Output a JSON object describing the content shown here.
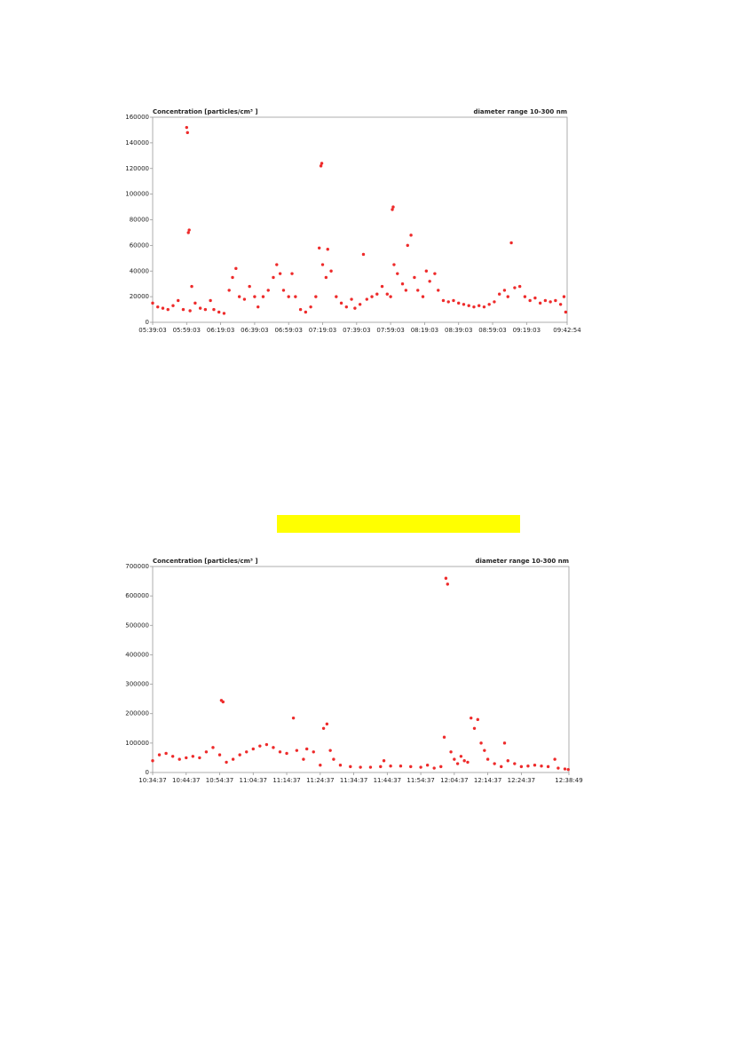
{
  "chart_data": [
    {
      "type": "scatter",
      "title": "Concentration [particles/cm³ ]",
      "subtitle": "diameter range 10-300 nm",
      "color": "#ee2b2b",
      "x": [
        "05:39:03",
        "05:42:03",
        "05:45:03",
        "05:48:03",
        "05:51:03",
        "05:54:03",
        "05:57:03",
        "05:59:03",
        "05:59:33",
        "06:00:03",
        "06:00:33",
        "06:01:03",
        "06:02:03",
        "06:04:03",
        "06:07:03",
        "06:10:03",
        "06:13:03",
        "06:15:03",
        "06:18:03",
        "06:21:03",
        "06:24:03",
        "06:26:03",
        "06:28:03",
        "06:30:03",
        "06:33:03",
        "06:36:03",
        "06:39:03",
        "06:41:03",
        "06:44:03",
        "06:47:03",
        "06:50:03",
        "06:52:03",
        "06:54:03",
        "06:56:03",
        "06:59:03",
        "07:01:03",
        "07:03:03",
        "07:06:03",
        "07:09:03",
        "07:12:03",
        "07:15:03",
        "07:17:03",
        "07:18:03",
        "07:18:33",
        "07:19:03",
        "07:21:03",
        "07:22:03",
        "07:24:03",
        "07:27:03",
        "07:30:03",
        "07:33:03",
        "07:36:03",
        "07:38:03",
        "07:41:03",
        "07:43:03",
        "07:45:03",
        "07:48:03",
        "07:51:03",
        "07:54:03",
        "07:57:03",
        "07:59:03",
        "08:00:03",
        "08:00:33",
        "08:01:03",
        "08:03:03",
        "08:06:03",
        "08:08:03",
        "08:09:03",
        "08:11:03",
        "08:13:03",
        "08:15:03",
        "08:18:03",
        "08:20:03",
        "08:22:03",
        "08:25:03",
        "08:27:03",
        "08:30:03",
        "08:33:03",
        "08:36:03",
        "08:39:03",
        "08:42:03",
        "08:45:03",
        "08:48:03",
        "08:51:03",
        "08:54:03",
        "08:57:03",
        "09:00:03",
        "09:03:03",
        "09:06:03",
        "09:08:03",
        "09:10:03",
        "09:12:03",
        "09:15:03",
        "09:18:03",
        "09:21:03",
        "09:24:03",
        "09:27:03",
        "09:30:03",
        "09:33:03",
        "09:36:03",
        "09:39:03",
        "09:41:03",
        "09:42:03"
      ],
      "values": [
        15000,
        12000,
        11000,
        10000,
        13000,
        17000,
        10000,
        152000,
        148000,
        70000,
        72000,
        9000,
        28000,
        15000,
        11000,
        10000,
        17000,
        10000,
        8000,
        7000,
        25000,
        35000,
        42000,
        20000,
        18000,
        28000,
        20000,
        12000,
        20000,
        25000,
        35000,
        45000,
        38000,
        25000,
        20000,
        38000,
        20000,
        10000,
        8000,
        12000,
        20000,
        58000,
        122000,
        124000,
        45000,
        35000,
        57000,
        40000,
        20000,
        15000,
        12000,
        18000,
        11000,
        14000,
        53000,
        18000,
        20000,
        22000,
        28000,
        22000,
        20000,
        88000,
        90000,
        45000,
        38000,
        30000,
        25000,
        60000,
        68000,
        35000,
        25000,
        20000,
        40000,
        32000,
        38000,
        25000,
        17000,
        16000,
        17000,
        15000,
        14000,
        13000,
        12000,
        13000,
        12000,
        14000,
        16000,
        22000,
        25000,
        20000,
        62000,
        27000,
        28000,
        20000,
        17000,
        19000,
        15000,
        17000,
        16000,
        17000,
        14000,
        20000,
        8000
      ],
      "xlim": [
        "05:39:03",
        "09:42:54"
      ],
      "xticks": [
        "05:39:03",
        "05:59:03",
        "06:19:03",
        "06:39:03",
        "06:59:03",
        "07:19:03",
        "07:39:03",
        "07:59:03",
        "08:19:03",
        "08:39:03",
        "08:59:03",
        "09:19:03",
        "09:42:54"
      ],
      "ylim": [
        0,
        160000
      ],
      "yticks": [
        0,
        20000,
        40000,
        60000,
        80000,
        100000,
        120000,
        140000,
        160000
      ]
    },
    {
      "type": "scatter",
      "title": "Concentration [particles/cm³ ]",
      "subtitle": "diameter range 10-300 nm",
      "color": "#ee2b2b",
      "x": [
        "10:34:37",
        "10:36:37",
        "10:38:37",
        "10:40:37",
        "10:42:37",
        "10:44:37",
        "10:46:37",
        "10:48:37",
        "10:50:37",
        "10:52:37",
        "10:54:37",
        "10:55:07",
        "10:55:37",
        "10:56:37",
        "10:58:37",
        "11:00:37",
        "11:02:37",
        "11:04:37",
        "11:06:37",
        "11:08:37",
        "11:10:37",
        "11:12:37",
        "11:14:37",
        "11:16:37",
        "11:17:37",
        "11:19:37",
        "11:20:37",
        "11:22:37",
        "11:24:37",
        "11:25:37",
        "11:26:37",
        "11:27:37",
        "11:28:37",
        "11:30:37",
        "11:33:37",
        "11:36:37",
        "11:39:37",
        "11:42:37",
        "11:43:37",
        "11:45:37",
        "11:48:37",
        "11:51:37",
        "11:54:37",
        "11:56:37",
        "11:58:37",
        "12:00:37",
        "12:01:37",
        "12:02:07",
        "12:02:37",
        "12:03:37",
        "12:04:37",
        "12:05:37",
        "12:06:37",
        "12:07:37",
        "12:08:37",
        "12:09:37",
        "12:10:37",
        "12:11:37",
        "12:12:37",
        "12:13:37",
        "12:14:37",
        "12:16:37",
        "12:18:37",
        "12:19:37",
        "12:20:37",
        "12:22:37",
        "12:24:37",
        "12:26:37",
        "12:28:37",
        "12:30:37",
        "12:32:37",
        "12:34:37",
        "12:35:37",
        "12:37:37",
        "12:38:37"
      ],
      "values": [
        40000,
        60000,
        65000,
        55000,
        45000,
        50000,
        55000,
        50000,
        70000,
        85000,
        60000,
        245000,
        240000,
        35000,
        45000,
        60000,
        70000,
        80000,
        90000,
        95000,
        85000,
        70000,
        65000,
        185000,
        75000,
        45000,
        80000,
        70000,
        25000,
        150000,
        165000,
        75000,
        45000,
        25000,
        20000,
        18000,
        18000,
        20000,
        40000,
        22000,
        22000,
        20000,
        18000,
        25000,
        15000,
        20000,
        120000,
        660000,
        640000,
        70000,
        45000,
        30000,
        55000,
        40000,
        35000,
        185000,
        150000,
        180000,
        100000,
        75000,
        45000,
        30000,
        20000,
        100000,
        40000,
        30000,
        20000,
        22000,
        25000,
        22000,
        20000,
        45000,
        15000,
        12000,
        10000
      ],
      "xlim": [
        "10:34:37",
        "12:38:49"
      ],
      "xticks": [
        "10:34:37",
        "10:44:37",
        "10:54:37",
        "11:04:37",
        "11:14:37",
        "11:24:37",
        "11:34:37",
        "11:44:37",
        "11:54:37",
        "12:04:37",
        "12:14:37",
        "12:24:37",
        "12:38:49"
      ],
      "ylim": [
        0,
        700000
      ],
      "yticks": [
        0,
        100000,
        200000,
        300000,
        400000,
        500000,
        600000,
        700000
      ]
    }
  ]
}
